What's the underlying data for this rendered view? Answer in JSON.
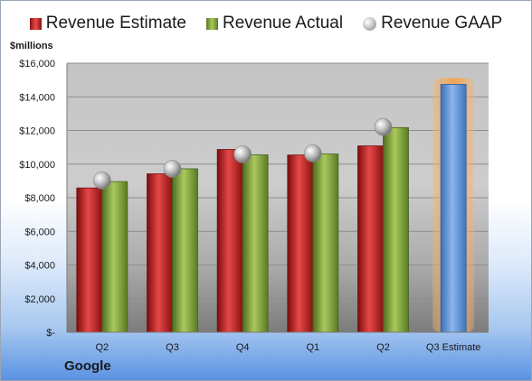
{
  "chart_data": {
    "type": "bar",
    "unit_label": "$millions",
    "caption": "Google",
    "categories": [
      "Q2",
      "Q3",
      "Q4",
      "Q1",
      "Q2",
      "Q3 Estimate"
    ],
    "series": [
      {
        "name": "Revenue Estimate",
        "kind": "bar",
        "color": "#c0282a",
        "values": [
          8580,
          9420,
          10870,
          10540,
          11080,
          null
        ]
      },
      {
        "name": "Revenue Actual",
        "kind": "bar",
        "color": "#86a83e",
        "values": [
          8960,
          9720,
          10550,
          10600,
          12170,
          null
        ]
      },
      {
        "name": "Revenue GAAP",
        "kind": "marker",
        "color": "#b8b8b8",
        "values": [
          9030,
          9720,
          10590,
          10640,
          12210,
          null
        ]
      },
      {
        "name": "Q3 Estimate",
        "kind": "bar",
        "color": "#5b93d8",
        "highlight": "#f7b46a",
        "values": [
          null,
          null,
          null,
          null,
          null,
          14740
        ]
      }
    ],
    "y_ticks": [
      "$-",
      "$2,000",
      "$4,000",
      "$6,000",
      "$8,000",
      "$10,000",
      "$12,000",
      "$14,000",
      "$16,000"
    ],
    "ylim": [
      0,
      16000
    ],
    "ystep": 2000,
    "grid": true,
    "legend_position": "top"
  }
}
